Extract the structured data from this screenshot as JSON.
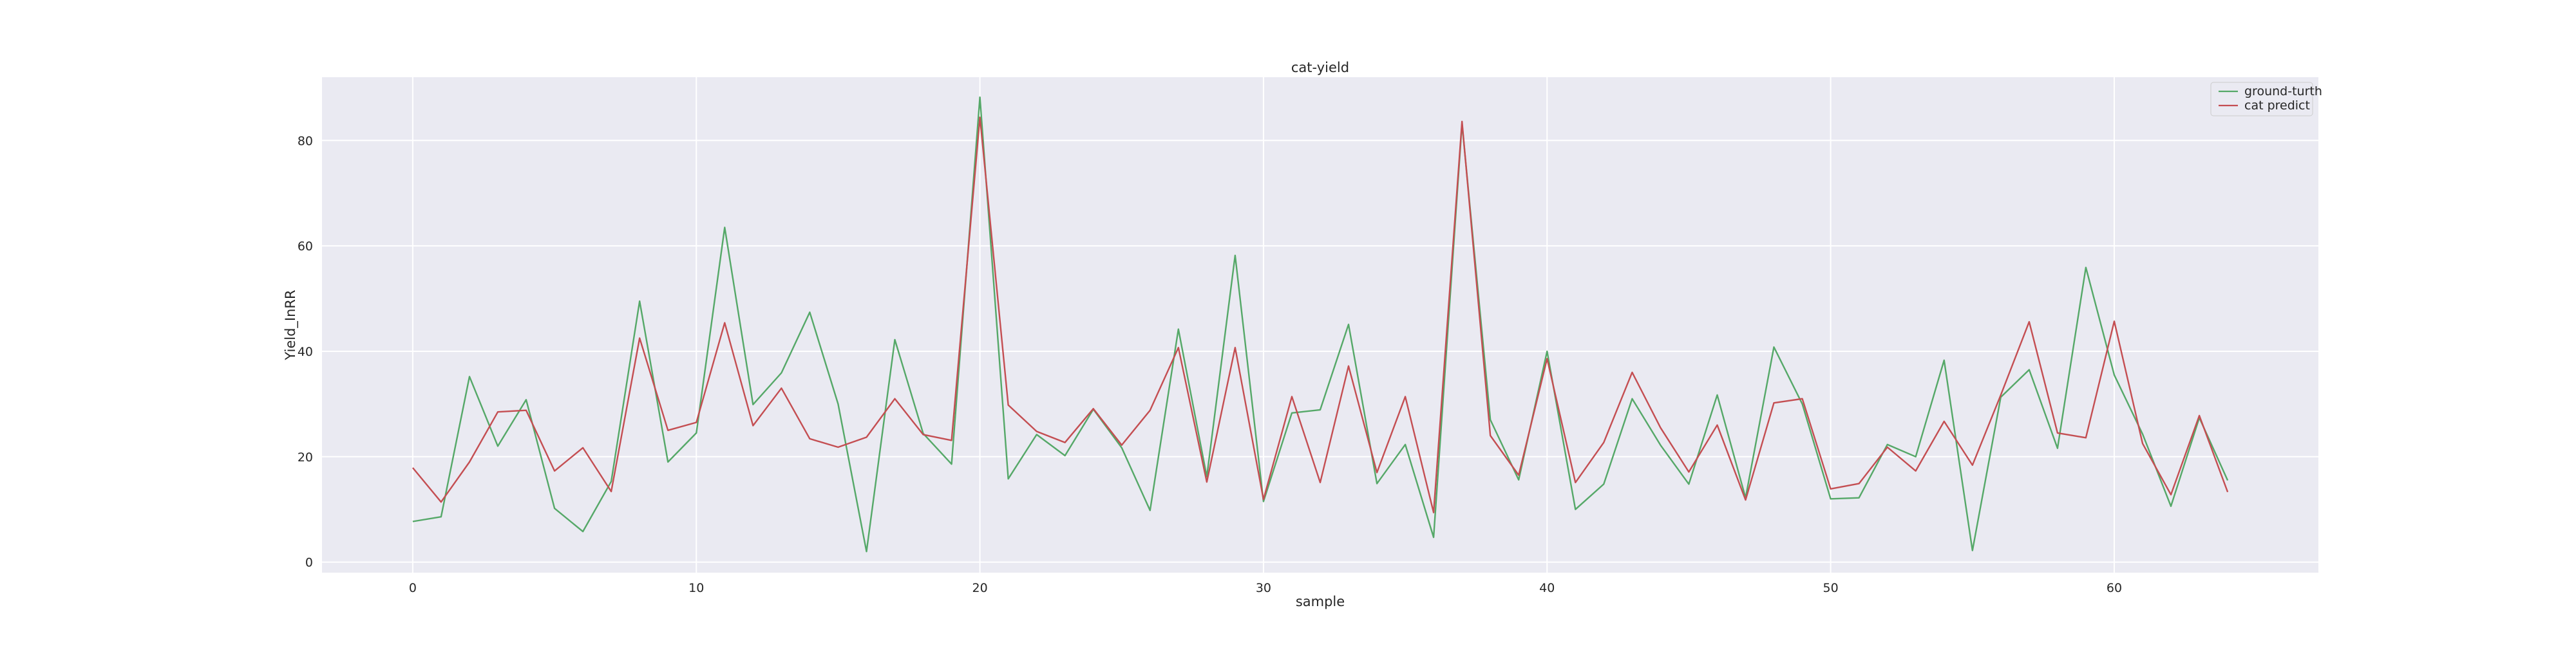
{
  "chart_data": {
    "type": "line",
    "title": "cat-yield",
    "xlabel": "sample",
    "ylabel": "Yield_InRR",
    "xlim": [
      -3.2,
      67.2
    ],
    "ylim": [
      -2,
      92
    ],
    "xticks": [
      0,
      10,
      20,
      30,
      40,
      50,
      60
    ],
    "yticks": [
      0,
      20,
      40,
      60,
      80
    ],
    "grid": true,
    "legend_position": "top-right",
    "background": "#eaeaf2",
    "series": [
      {
        "name": "ground-turth",
        "color": "#55a868",
        "x": [
          0,
          1,
          2,
          3,
          4,
          5,
          6,
          7,
          8,
          9,
          10,
          11,
          12,
          13,
          14,
          15,
          16,
          17,
          18,
          19,
          20,
          21,
          22,
          23,
          24,
          25,
          26,
          27,
          28,
          29,
          30,
          31,
          32,
          33,
          34,
          35,
          36,
          37,
          38,
          39,
          40,
          41,
          42,
          43,
          44,
          45,
          46,
          47,
          48,
          49,
          50,
          51,
          52,
          53,
          54,
          55,
          56,
          57,
          58,
          59,
          60,
          61,
          62,
          63,
          64
        ],
        "values": [
          7.7,
          8.6,
          35.2,
          22,
          30.8,
          10.2,
          5.8,
          15.3,
          49.5,
          19,
          24.5,
          63.5,
          29.9,
          35.9,
          47.4,
          30,
          2,
          42.2,
          24.4,
          18.6,
          88.2,
          15.8,
          24.2,
          20.2,
          29,
          21.7,
          9.8,
          44.2,
          16.2,
          58.2,
          11.5,
          28.3,
          28.9,
          45.1,
          14.9,
          22.3,
          4.7,
          83.2,
          27,
          15.6,
          40,
          10,
          14.8,
          31,
          22.2,
          14.8,
          31.7,
          12.2,
          40.8,
          30,
          12,
          12.2,
          22.3,
          20,
          38.3,
          2.2,
          31.3,
          36.5,
          21.6,
          55.9,
          35.5,
          24.3,
          10.6,
          27.4,
          15.5
        ]
      },
      {
        "name": "cat predict",
        "color": "#c44e52",
        "x": [
          0,
          1,
          2,
          3,
          4,
          5,
          6,
          7,
          8,
          9,
          10,
          11,
          12,
          13,
          14,
          15,
          16,
          17,
          18,
          19,
          20,
          21,
          22,
          23,
          24,
          25,
          26,
          27,
          28,
          29,
          30,
          31,
          32,
          33,
          34,
          35,
          36,
          37,
          38,
          39,
          40,
          41,
          42,
          43,
          44,
          45,
          46,
          47,
          48,
          49,
          50,
          51,
          52,
          53,
          54,
          55,
          56,
          57,
          58,
          59,
          60,
          61,
          62,
          63,
          64
        ],
        "values": [
          17.9,
          11.4,
          19,
          28.5,
          28.8,
          17.3,
          21.7,
          13.4,
          42.5,
          25,
          26.5,
          45.4,
          25.9,
          33,
          23.4,
          21.8,
          23.7,
          31,
          24.2,
          23.1,
          84.4,
          29.8,
          24.8,
          22.7,
          29.1,
          22.2,
          28.8,
          40.7,
          15.2,
          40.7,
          11.9,
          31.4,
          15.1,
          37.2,
          17,
          31.4,
          9.4,
          83.6,
          24,
          16.5,
          38.6,
          15.1,
          22.7,
          36,
          25.5,
          17.1,
          26,
          11.8,
          30.2,
          31,
          13.9,
          14.9,
          21.8,
          17.3,
          26.7,
          18.4,
          31.7,
          45.6,
          24.5,
          23.6,
          45.7,
          22.5,
          12.8,
          27.8,
          13.3
        ]
      }
    ]
  }
}
